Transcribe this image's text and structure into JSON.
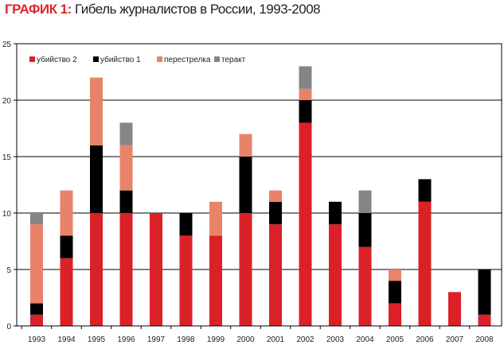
{
  "title_label": "ГРАФИК 1:",
  "title_text": "Гибель журналистов в России, 1993-2008",
  "chart_data": {
    "type": "bar",
    "stacked": true,
    "title": "Гибель журналистов в России, 1993-2008",
    "categories": [
      "1993",
      "1994",
      "1995",
      "1996",
      "1997",
      "1998",
      "1999",
      "2000",
      "2001",
      "2002",
      "2003",
      "2004",
      "2005",
      "2006",
      "2007",
      "2008"
    ],
    "series": [
      {
        "name": "убийство 2",
        "color": "#db2128",
        "values": [
          1,
          6,
          10,
          10,
          10,
          8,
          8,
          10,
          9,
          18,
          9,
          7,
          2,
          11,
          3,
          1
        ]
      },
      {
        "name": "убийство 1",
        "color": "#000000",
        "values": [
          1,
          2,
          6,
          2,
          0,
          2,
          0,
          5,
          2,
          2,
          2,
          3,
          2,
          2,
          0,
          4
        ]
      },
      {
        "name": "перестрелка",
        "color": "#e8836a",
        "values": [
          7,
          4,
          6,
          4,
          0,
          0,
          3,
          2,
          1,
          1,
          0,
          0,
          1,
          0,
          0,
          0
        ]
      },
      {
        "name": "теракт",
        "color": "#858585",
        "values": [
          1,
          0,
          0,
          2,
          0,
          0,
          0,
          0,
          0,
          2,
          0,
          2,
          0,
          0,
          0,
          0
        ]
      }
    ],
    "yticks": [
      0,
      5,
      10,
      15,
      20,
      25
    ],
    "ylim": [
      0,
      25
    ],
    "grid": true,
    "legend": "top-left",
    "xlabel": "",
    "ylabel": ""
  }
}
